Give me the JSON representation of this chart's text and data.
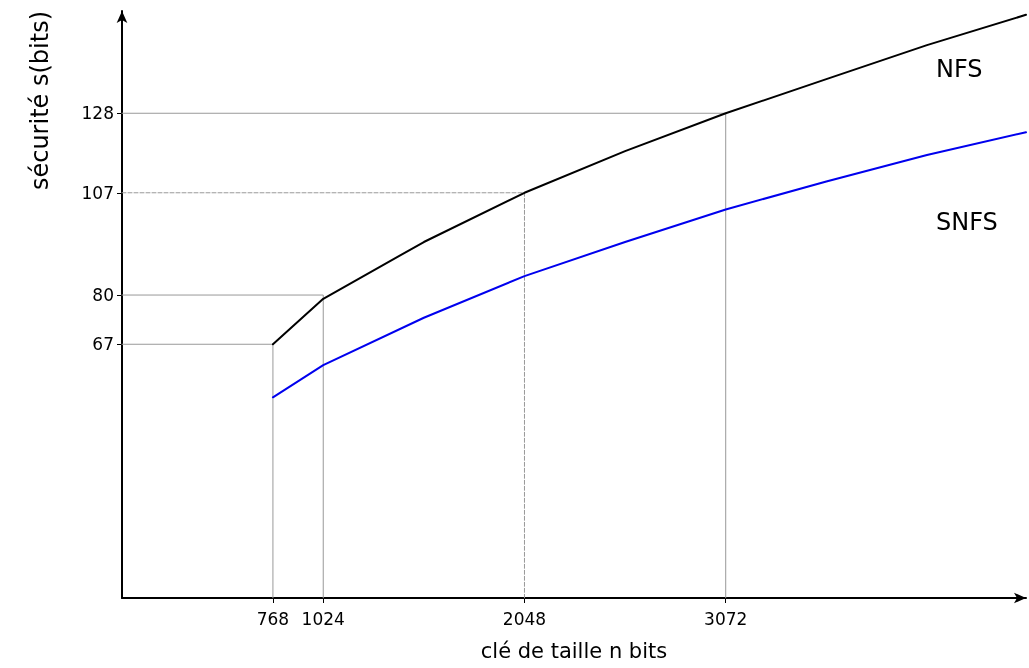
{
  "chart_data": {
    "type": "line",
    "xlabel": "clé de taille n bits",
    "ylabel": "sécurité s(bits)",
    "xlim": [
      0,
      4600
    ],
    "ylim": [
      0,
      155
    ],
    "xticks": [
      768,
      1024,
      2048,
      3072
    ],
    "yticks": [
      67,
      80,
      107,
      128
    ],
    "grid": false,
    "legend": false,
    "marker": "none",
    "series": [
      {
        "name": "NFS",
        "color": "#000000",
        "x": [
          768,
          1024,
          1536,
          2048,
          2560,
          3072,
          3584,
          4096,
          4600
        ],
        "values": [
          67,
          79,
          94,
          107,
          118,
          128,
          137,
          146,
          154
        ]
      },
      {
        "name": "SNFS",
        "color": "#0000ee",
        "x": [
          768,
          1024,
          1536,
          2048,
          2560,
          3072,
          3584,
          4096,
          4600
        ],
        "values": [
          53,
          61.5,
          74,
          85,
          94,
          102.6,
          110,
          117,
          123
        ]
      },
      {
        "color": "#999999",
        "x": [
          0,
          768,
          768
        ],
        "values": [
          67,
          67,
          0
        ]
      },
      {
        "color": "#999999",
        "x": [
          0,
          1024,
          1024
        ],
        "values": [
          80,
          80,
          0
        ]
      },
      {
        "color": "#999999",
        "line_style": "dashed",
        "x": [
          0,
          2048,
          2048
        ],
        "values": [
          107,
          107,
          0
        ]
      },
      {
        "color": "#999999",
        "x": [
          0,
          3072,
          3072
        ],
        "values": [
          128,
          128,
          0
        ]
      }
    ]
  }
}
